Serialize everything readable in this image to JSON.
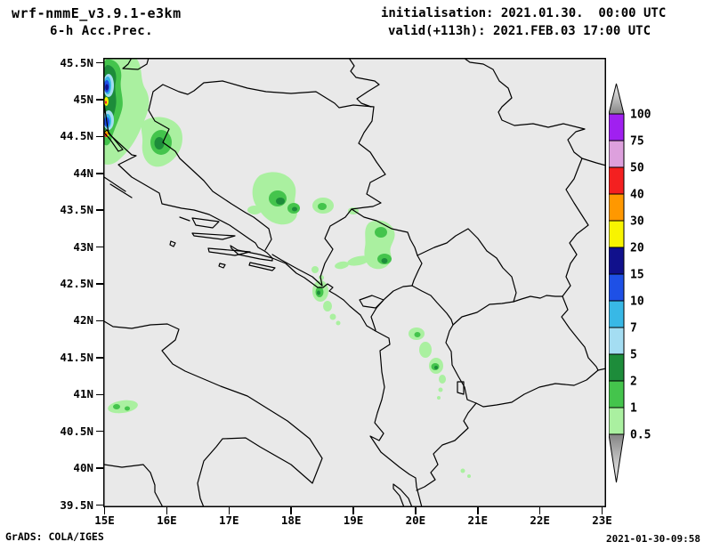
{
  "header": {
    "model_title": "wrf-nmmE_v3.9.1-e3km",
    "product_title": "6-h Acc.Prec.",
    "init_line": "initialisation: 2021.01.30.  00:00 UTC",
    "valid_line": "valid(+113h): 2021.FEB.03 17:00 UTC"
  },
  "axes": {
    "lat_labels": [
      "45.5N",
      "45N",
      "44.5N",
      "44N",
      "43.5N",
      "43N",
      "42.5N",
      "42N",
      "41.5N",
      "41N",
      "40.5N",
      "40N",
      "39.5N"
    ],
    "lon_labels": [
      "15E",
      "16E",
      "17E",
      "18E",
      "19E",
      "20E",
      "21E",
      "22E",
      "23E"
    ]
  },
  "colorbar": {
    "tick_labels": [
      "100",
      "75",
      "50",
      "40",
      "30",
      "20",
      "15",
      "10",
      "7",
      "5",
      "2",
      "1",
      "0.5"
    ],
    "levels_mm_desc": [
      100,
      75,
      50,
      40,
      30,
      20,
      15,
      10,
      7,
      5,
      2,
      1,
      0.5
    ],
    "arrow_top_gradient": [
      "#f6f6f6",
      "#858585"
    ],
    "arrow_bottom_gradient": [
      "#858585",
      "#f6f6f6"
    ]
  },
  "palette": {
    "mm_75_100": "#a020f0",
    "mm_50_75": "#dda0dd",
    "mm_40_50": "#f42020",
    "mm_30_40": "#ff9800",
    "mm_20_30": "#f8f400",
    "mm_15_20": "#10108c",
    "mm_10_15": "#1e50e6",
    "mm_7_10": "#38b8e6",
    "mm_5_7": "#a4ddf2",
    "mm_2_5": "#1d8c3a",
    "mm_1_2": "#44c44c",
    "mm_0_5_1": "#aaf0a0"
  },
  "map": {
    "background": "#e9e9e9",
    "line_color": "#000000",
    "lon_range_deg_e": [
      15,
      23
    ],
    "lat_range_deg_n": [
      39.5,
      45.5
    ]
  },
  "footer": {
    "credit": "GrADS: COLA/IGES",
    "timestamp": "2021-01-30-09:58"
  }
}
